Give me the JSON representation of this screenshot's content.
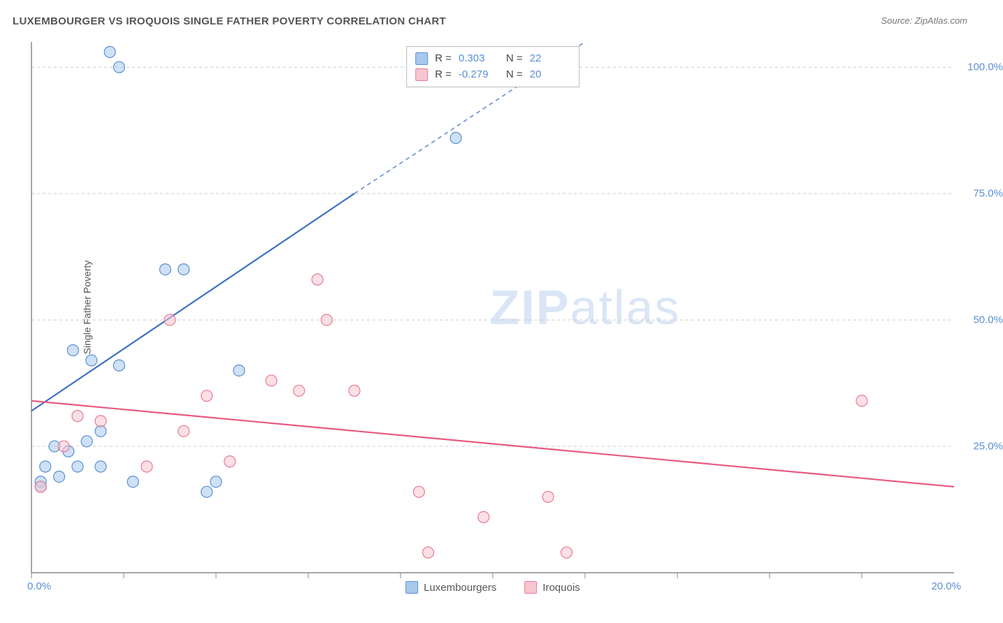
{
  "title": "LUXEMBOURGER VS IROQUOIS SINGLE FATHER POVERTY CORRELATION CHART",
  "source": "Source: ZipAtlas.com",
  "watermark_zip": "ZIP",
  "watermark_atlas": "atlas",
  "ylabel": "Single Father Poverty",
  "chart": {
    "type": "scatter",
    "xlim": [
      0,
      20
    ],
    "ylim": [
      0,
      105
    ],
    "x_tick_positions": [
      0,
      2,
      4,
      6,
      8,
      10,
      12,
      14,
      16,
      18
    ],
    "x_tick_labels_left": "0.0%",
    "x_tick_labels_right": "20.0%",
    "y_ticks": [
      {
        "v": 25,
        "label": "25.0%"
      },
      {
        "v": 50,
        "label": "50.0%"
      },
      {
        "v": 75,
        "label": "75.0%"
      },
      {
        "v": 100,
        "label": "100.0%"
      }
    ],
    "background_color": "#ffffff",
    "grid_color": "#cccccc",
    "marker_radius": 8,
    "marker_stroke_width": 1.2,
    "series": [
      {
        "name": "Luxembourgers",
        "fill_color": "#a8c8ec",
        "stroke_color": "#5a8fd4",
        "line_color": "#3b6fc4",
        "r_value": "0.303",
        "n_value": "22",
        "trend_start": {
          "x": 0,
          "y": 32
        },
        "trend_solid_end": {
          "x": 7.0,
          "y": 75
        },
        "trend_dash_end": {
          "x": 12.0,
          "y": 105
        },
        "points": [
          {
            "x": 1.7,
            "y": 103
          },
          {
            "x": 1.9,
            "y": 100
          },
          {
            "x": 9.2,
            "y": 86
          },
          {
            "x": 2.9,
            "y": 60
          },
          {
            "x": 3.3,
            "y": 60
          },
          {
            "x": 0.9,
            "y": 44
          },
          {
            "x": 1.3,
            "y": 42
          },
          {
            "x": 1.9,
            "y": 41
          },
          {
            "x": 4.5,
            "y": 40
          },
          {
            "x": 1.5,
            "y": 28
          },
          {
            "x": 1.2,
            "y": 26
          },
          {
            "x": 0.5,
            "y": 25
          },
          {
            "x": 0.8,
            "y": 24
          },
          {
            "x": 0.3,
            "y": 21
          },
          {
            "x": 1.0,
            "y": 21
          },
          {
            "x": 1.5,
            "y": 21
          },
          {
            "x": 2.2,
            "y": 18
          },
          {
            "x": 0.2,
            "y": 18
          },
          {
            "x": 0.6,
            "y": 19
          },
          {
            "x": 4.0,
            "y": 18
          },
          {
            "x": 3.8,
            "y": 16
          },
          {
            "x": 0.2,
            "y": 17
          }
        ]
      },
      {
        "name": "Iroquois",
        "fill_color": "#f7c6d0",
        "stroke_color": "#e77a95",
        "line_color": "#e85a80",
        "r_value": "-0.279",
        "n_value": "20",
        "trend_start": {
          "x": 0,
          "y": 34
        },
        "trend_solid_end": {
          "x": 20,
          "y": 17
        },
        "points": [
          {
            "x": 6.2,
            "y": 58
          },
          {
            "x": 3.0,
            "y": 50
          },
          {
            "x": 6.4,
            "y": 50
          },
          {
            "x": 5.2,
            "y": 38
          },
          {
            "x": 5.8,
            "y": 36
          },
          {
            "x": 7.0,
            "y": 36
          },
          {
            "x": 3.8,
            "y": 35
          },
          {
            "x": 18.0,
            "y": 34
          },
          {
            "x": 1.0,
            "y": 31
          },
          {
            "x": 1.5,
            "y": 30
          },
          {
            "x": 3.3,
            "y": 28
          },
          {
            "x": 0.7,
            "y": 25
          },
          {
            "x": 4.3,
            "y": 22
          },
          {
            "x": 2.5,
            "y": 21
          },
          {
            "x": 0.2,
            "y": 17
          },
          {
            "x": 8.4,
            "y": 16
          },
          {
            "x": 11.2,
            "y": 15
          },
          {
            "x": 9.8,
            "y": 11
          },
          {
            "x": 8.6,
            "y": 4
          },
          {
            "x": 11.6,
            "y": 4
          }
        ]
      }
    ]
  },
  "legend_labels": {
    "r": "R =",
    "n": "N ="
  }
}
